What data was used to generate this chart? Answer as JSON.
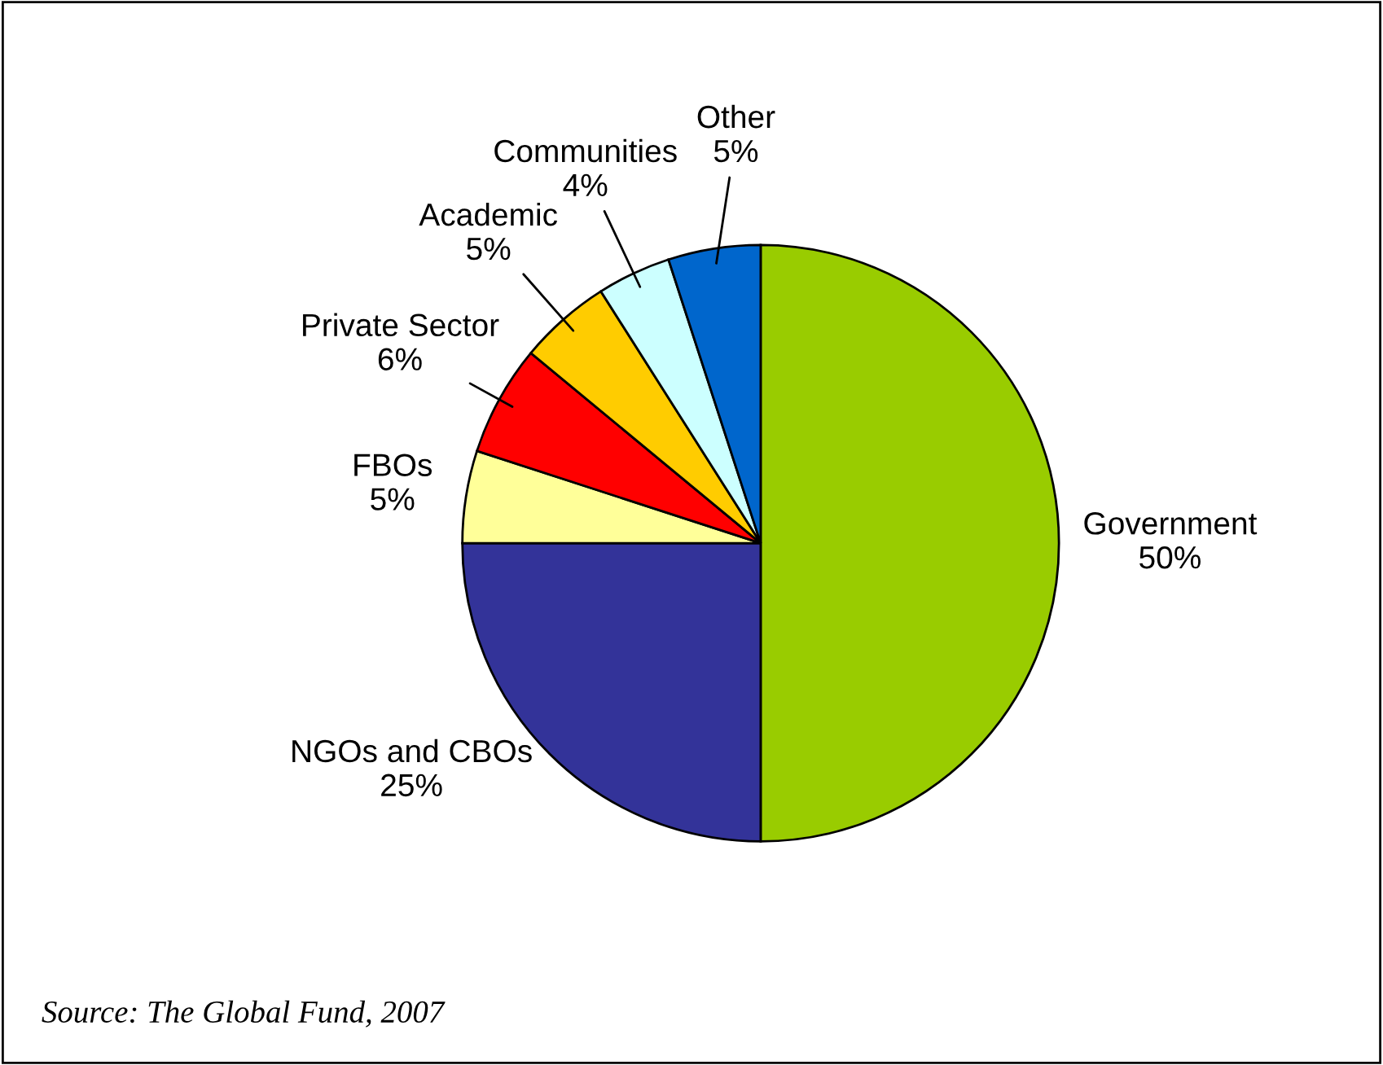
{
  "chart_data": {
    "type": "pie",
    "categories": [
      "Government",
      "NGOs and CBOs",
      "FBOs",
      "Private Sector",
      "Academic",
      "Communities",
      "Other"
    ],
    "values": [
      50,
      25,
      5,
      6,
      5,
      4,
      5
    ],
    "colors": [
      "#99cc00",
      "#333399",
      "#ffff99",
      "#ff0000",
      "#ffcc00",
      "#ccffff",
      "#0066cc"
    ],
    "value_labels": [
      "50%",
      "25%",
      "5%",
      "6%",
      "5%",
      "4%",
      "5%"
    ],
    "annotations": [
      "Source: The Global Fund, 2007"
    ]
  }
}
